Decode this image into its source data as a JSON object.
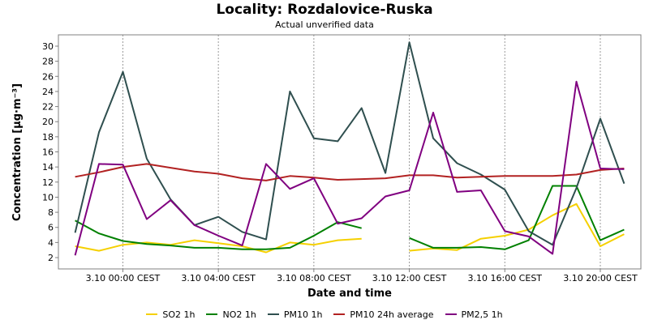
{
  "chart_data": {
    "type": "line",
    "title": "Locality: Rozdalovice-Ruska",
    "subtitle": "Actual unverified data",
    "xlabel": "Date and time",
    "ylabel": "Concentration [µg·m⁻³]",
    "ylim": [
      0.5,
      31.5
    ],
    "yticks": [
      2,
      4,
      6,
      8,
      10,
      12,
      14,
      16,
      18,
      20,
      22,
      24,
      26,
      28,
      30
    ],
    "xlim": [
      -2.7,
      21.7
    ],
    "xticks": [
      {
        "x": 0,
        "label": "3.10 00:00 CEST"
      },
      {
        "x": 4,
        "label": "3.10 04:00 CEST"
      },
      {
        "x": 8,
        "label": "3.10 08:00 CEST"
      },
      {
        "x": 12,
        "label": "3.10 12:00 CEST"
      },
      {
        "x": 16,
        "label": "3.10 16:00 CEST"
      },
      {
        "x": 20,
        "label": "3.10 20:00 CEST"
      }
    ],
    "grid": "vertical-dashed",
    "legend_position": "bottom",
    "series": [
      {
        "name": "SO2 1h",
        "color": "#f5d000",
        "x": [
          -2,
          -1,
          0,
          1,
          2,
          3,
          4,
          5,
          6,
          7,
          8,
          9,
          10,
          11,
          12,
          13,
          14,
          15,
          16,
          17,
          18,
          19,
          20,
          21
        ],
        "values": [
          3.5,
          2.9,
          3.7,
          4.0,
          3.7,
          4.3,
          3.9,
          3.5,
          2.7,
          4.0,
          3.7,
          4.3,
          4.5,
          null,
          2.9,
          3.2,
          3.0,
          4.5,
          4.9,
          5.7,
          7.6,
          9.1,
          3.5,
          5.1
        ]
      },
      {
        "name": "NO2 1h",
        "color": "#008000",
        "x": [
          -2,
          -1,
          0,
          1,
          2,
          3,
          4,
          5,
          6,
          7,
          8,
          9,
          10,
          11,
          12,
          13,
          14,
          15,
          16,
          17,
          18,
          19,
          20,
          21
        ],
        "values": [
          6.9,
          5.2,
          4.2,
          3.8,
          3.6,
          3.3,
          3.3,
          3.1,
          3.1,
          3.3,
          4.9,
          6.7,
          5.9,
          null,
          4.6,
          3.3,
          3.3,
          3.4,
          3.1,
          4.3,
          11.5,
          11.5,
          4.3,
          5.7
        ]
      },
      {
        "name": "PM10 1h",
        "color": "#2f4f4f",
        "x": [
          -2,
          -1,
          0,
          1,
          2,
          3,
          4,
          5,
          6,
          7,
          8,
          9,
          10,
          11,
          12,
          13,
          14,
          15,
          16,
          17,
          18,
          19,
          20,
          21
        ],
        "values": [
          5.3,
          18.6,
          26.6,
          15.1,
          9.7,
          6.3,
          7.4,
          5.4,
          4.4,
          24.0,
          17.8,
          17.4,
          21.8,
          13.2,
          30.5,
          17.8,
          14.5,
          13.0,
          11.0,
          5.5,
          3.7,
          11.2,
          20.4,
          11.8
        ]
      },
      {
        "name": "PM10 24h average",
        "color": "#b22222",
        "x": [
          -2,
          -1,
          0,
          1,
          2,
          3,
          4,
          5,
          6,
          7,
          8,
          9,
          10,
          11,
          12,
          13,
          14,
          15,
          16,
          17,
          18,
          19,
          20,
          21
        ],
        "values": [
          12.7,
          13.3,
          14.0,
          14.4,
          13.9,
          13.4,
          13.1,
          12.5,
          12.2,
          12.8,
          12.6,
          12.3,
          12.4,
          12.5,
          12.9,
          12.9,
          12.6,
          12.7,
          12.8,
          12.8,
          12.8,
          13.0,
          13.6,
          13.8
        ]
      },
      {
        "name": "PM2,5 1h",
        "color": "#800080",
        "x": [
          -2,
          -1,
          0,
          1,
          2,
          3,
          4,
          5,
          6,
          7,
          8,
          9,
          10,
          11,
          12,
          13,
          14,
          15,
          16,
          17,
          18,
          19,
          20,
          21
        ],
        "values": [
          2.3,
          14.4,
          14.3,
          7.1,
          9.6,
          6.3,
          4.9,
          3.6,
          14.4,
          11.1,
          12.5,
          6.5,
          7.2,
          10.1,
          10.9,
          21.2,
          10.7,
          10.9,
          5.5,
          4.8,
          2.5,
          25.3,
          13.8,
          13.7
        ]
      }
    ]
  }
}
